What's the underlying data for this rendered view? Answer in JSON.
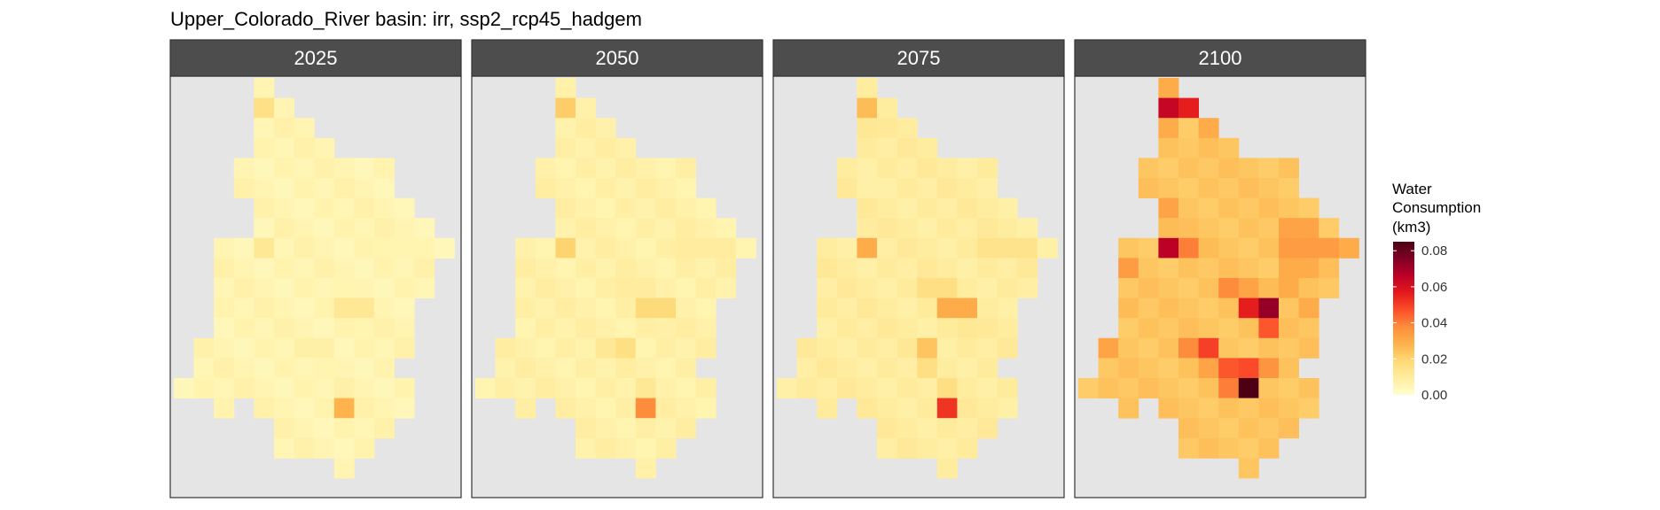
{
  "chart_data": {
    "type": "heatmap",
    "title": "Upper_Colorado_River basin: irr, ssp2_rcp45_hadgem",
    "panels": [
      "2025",
      "2050",
      "2075",
      "2100"
    ],
    "legend": {
      "title_lines": [
        "Water",
        "Consumption",
        "(km3)"
      ],
      "ticks": [
        0.0,
        0.02,
        0.04,
        0.06,
        0.08
      ],
      "tick_labels": [
        "0.00",
        "0.02",
        "0.04",
        "0.06",
        "0.08"
      ],
      "range": [
        0,
        0.085
      ],
      "colors": [
        "#ffffcc",
        "#ffeda0",
        "#fed976",
        "#feb24c",
        "#fd8d3c",
        "#fc4e2a",
        "#e31a1c",
        "#bd0026",
        "#800026",
        "#4d0013"
      ]
    },
    "colors": {
      "strip": "#4d4d4d",
      "panel_bg": "#e5e5e5",
      "panel_border": "#333333"
    },
    "grid": {
      "cols": 14,
      "rows": 20,
      "cells": [
        [
          0,
          4
        ],
        [
          1,
          4
        ],
        [
          1,
          5
        ],
        [
          2,
          4
        ],
        [
          2,
          5
        ],
        [
          2,
          6
        ],
        [
          3,
          4
        ],
        [
          3,
          5
        ],
        [
          3,
          6
        ],
        [
          3,
          7
        ],
        [
          4,
          3
        ],
        [
          4,
          4
        ],
        [
          4,
          5
        ],
        [
          4,
          6
        ],
        [
          4,
          7
        ],
        [
          4,
          8
        ],
        [
          4,
          9
        ],
        [
          4,
          10
        ],
        [
          5,
          3
        ],
        [
          5,
          4
        ],
        [
          5,
          5
        ],
        [
          5,
          6
        ],
        [
          5,
          7
        ],
        [
          5,
          8
        ],
        [
          5,
          9
        ],
        [
          5,
          10
        ],
        [
          6,
          4
        ],
        [
          6,
          5
        ],
        [
          6,
          6
        ],
        [
          6,
          7
        ],
        [
          6,
          8
        ],
        [
          6,
          9
        ],
        [
          6,
          10
        ],
        [
          6,
          11
        ],
        [
          7,
          4
        ],
        [
          7,
          5
        ],
        [
          7,
          6
        ],
        [
          7,
          7
        ],
        [
          7,
          8
        ],
        [
          7,
          9
        ],
        [
          7,
          10
        ],
        [
          7,
          11
        ],
        [
          7,
          12
        ],
        [
          8,
          2
        ],
        [
          8,
          3
        ],
        [
          8,
          4
        ],
        [
          8,
          5
        ],
        [
          8,
          6
        ],
        [
          8,
          7
        ],
        [
          8,
          8
        ],
        [
          8,
          9
        ],
        [
          8,
          10
        ],
        [
          8,
          11
        ],
        [
          8,
          12
        ],
        [
          8,
          13
        ],
        [
          9,
          2
        ],
        [
          9,
          3
        ],
        [
          9,
          4
        ],
        [
          9,
          5
        ],
        [
          9,
          6
        ],
        [
          9,
          7
        ],
        [
          9,
          8
        ],
        [
          9,
          9
        ],
        [
          9,
          10
        ],
        [
          9,
          11
        ],
        [
          9,
          12
        ],
        [
          10,
          2
        ],
        [
          10,
          3
        ],
        [
          10,
          4
        ],
        [
          10,
          5
        ],
        [
          10,
          6
        ],
        [
          10,
          7
        ],
        [
          10,
          8
        ],
        [
          10,
          9
        ],
        [
          10,
          10
        ],
        [
          10,
          11
        ],
        [
          10,
          12
        ],
        [
          11,
          2
        ],
        [
          11,
          3
        ],
        [
          11,
          4
        ],
        [
          11,
          5
        ],
        [
          11,
          6
        ],
        [
          11,
          7
        ],
        [
          11,
          8
        ],
        [
          11,
          9
        ],
        [
          11,
          10
        ],
        [
          11,
          11
        ],
        [
          12,
          2
        ],
        [
          12,
          3
        ],
        [
          12,
          4
        ],
        [
          12,
          5
        ],
        [
          12,
          6
        ],
        [
          12,
          7
        ],
        [
          12,
          8
        ],
        [
          12,
          9
        ],
        [
          12,
          10
        ],
        [
          12,
          11
        ],
        [
          13,
          1
        ],
        [
          13,
          2
        ],
        [
          13,
          3
        ],
        [
          13,
          4
        ],
        [
          13,
          5
        ],
        [
          13,
          6
        ],
        [
          13,
          7
        ],
        [
          13,
          8
        ],
        [
          13,
          9
        ],
        [
          13,
          10
        ],
        [
          13,
          11
        ],
        [
          14,
          1
        ],
        [
          14,
          2
        ],
        [
          14,
          3
        ],
        [
          14,
          4
        ],
        [
          14,
          5
        ],
        [
          14,
          6
        ],
        [
          14,
          7
        ],
        [
          14,
          8
        ],
        [
          14,
          9
        ],
        [
          14,
          10
        ],
        [
          15,
          0
        ],
        [
          15,
          1
        ],
        [
          15,
          2
        ],
        [
          15,
          3
        ],
        [
          15,
          4
        ],
        [
          15,
          5
        ],
        [
          15,
          6
        ],
        [
          15,
          7
        ],
        [
          15,
          8
        ],
        [
          15,
          9
        ],
        [
          15,
          10
        ],
        [
          15,
          11
        ],
        [
          16,
          2
        ],
        [
          16,
          4
        ],
        [
          16,
          5
        ],
        [
          16,
          6
        ],
        [
          16,
          7
        ],
        [
          16,
          8
        ],
        [
          16,
          9
        ],
        [
          16,
          10
        ],
        [
          16,
          11
        ],
        [
          17,
          5
        ],
        [
          17,
          6
        ],
        [
          17,
          7
        ],
        [
          17,
          8
        ],
        [
          17,
          9
        ],
        [
          17,
          10
        ],
        [
          18,
          5
        ],
        [
          18,
          6
        ],
        [
          18,
          7
        ],
        [
          18,
          8
        ],
        [
          18,
          9
        ],
        [
          19,
          8
        ]
      ]
    },
    "hot": {
      "2025": [
        [
          1,
          4,
          0.015
        ],
        [
          7,
          4,
          0.004
        ],
        [
          8,
          4,
          0.012
        ],
        [
          11,
          8,
          0.012
        ],
        [
          11,
          9,
          0.012
        ],
        [
          13,
          6,
          0.008
        ],
        [
          13,
          7,
          0.008
        ],
        [
          15,
          8,
          0.008
        ],
        [
          16,
          8,
          0.028
        ],
        [
          10,
          8,
          0.006
        ],
        [
          8,
          10,
          0.006
        ],
        [
          8,
          11,
          0.006
        ],
        [
          8,
          12,
          0.006
        ],
        [
          12,
          9,
          0.006
        ],
        [
          14,
          7,
          0.006
        ]
      ],
      "2050": [
        [
          1,
          4,
          0.022
        ],
        [
          8,
          4,
          0.02
        ],
        [
          11,
          8,
          0.018
        ],
        [
          11,
          9,
          0.018
        ],
        [
          13,
          6,
          0.012
        ],
        [
          13,
          7,
          0.016
        ],
        [
          15,
          8,
          0.012
        ],
        [
          16,
          8,
          0.038
        ],
        [
          10,
          7,
          0.01
        ],
        [
          10,
          8,
          0.01
        ],
        [
          8,
          10,
          0.01
        ],
        [
          8,
          11,
          0.01
        ],
        [
          8,
          12,
          0.01
        ],
        [
          12,
          9,
          0.008
        ]
      ],
      "2075": [
        [
          1,
          4,
          0.026
        ],
        [
          2,
          4,
          0.012
        ],
        [
          5,
          4,
          0.008
        ],
        [
          7,
          4,
          0.01
        ],
        [
          8,
          4,
          0.03
        ],
        [
          11,
          8,
          0.03
        ],
        [
          11,
          9,
          0.03
        ],
        [
          10,
          7,
          0.016
        ],
        [
          10,
          8,
          0.016
        ],
        [
          13,
          6,
          0.012
        ],
        [
          13,
          7,
          0.024
        ],
        [
          14,
          7,
          0.016
        ],
        [
          15,
          8,
          0.016
        ],
        [
          16,
          8,
          0.052
        ],
        [
          8,
          10,
          0.014
        ],
        [
          8,
          11,
          0.014
        ],
        [
          8,
          12,
          0.014
        ],
        [
          12,
          9,
          0.012
        ],
        [
          9,
          2,
          0.012
        ]
      ],
      "2100": [
        [
          0,
          4,
          0.03
        ],
        [
          1,
          4,
          0.064
        ],
        [
          1,
          5,
          0.056
        ],
        [
          2,
          4,
          0.03
        ],
        [
          2,
          5,
          0.022
        ],
        [
          2,
          6,
          0.03
        ],
        [
          6,
          4,
          0.032
        ],
        [
          7,
          4,
          0.026
        ],
        [
          8,
          4,
          0.066
        ],
        [
          8,
          5,
          0.04
        ],
        [
          8,
          6,
          0.026
        ],
        [
          7,
          10,
          0.032
        ],
        [
          7,
          11,
          0.032
        ],
        [
          8,
          10,
          0.034
        ],
        [
          8,
          11,
          0.034
        ],
        [
          8,
          12,
          0.034
        ],
        [
          8,
          13,
          0.03
        ],
        [
          9,
          2,
          0.034
        ],
        [
          9,
          10,
          0.03
        ],
        [
          9,
          11,
          0.03
        ],
        [
          11,
          2,
          0.026
        ],
        [
          10,
          7,
          0.038
        ],
        [
          10,
          8,
          0.032
        ],
        [
          10,
          9,
          0.026
        ],
        [
          10,
          10,
          0.03
        ],
        [
          11,
          8,
          0.056
        ],
        [
          11,
          9,
          0.072
        ],
        [
          11,
          11,
          0.03
        ],
        [
          12,
          9,
          0.046
        ],
        [
          13,
          1,
          0.032
        ],
        [
          13,
          5,
          0.038
        ],
        [
          13,
          6,
          0.05
        ],
        [
          14,
          7,
          0.046
        ],
        [
          14,
          8,
          0.048
        ],
        [
          14,
          6,
          0.032
        ],
        [
          15,
          8,
          0.088
        ],
        [
          15,
          7,
          0.04
        ],
        [
          14,
          9,
          0.036
        ]
      ]
    },
    "base": {
      "2025": 0.004,
      "2050": 0.006,
      "2075": 0.008,
      "2100": 0.022
    }
  }
}
